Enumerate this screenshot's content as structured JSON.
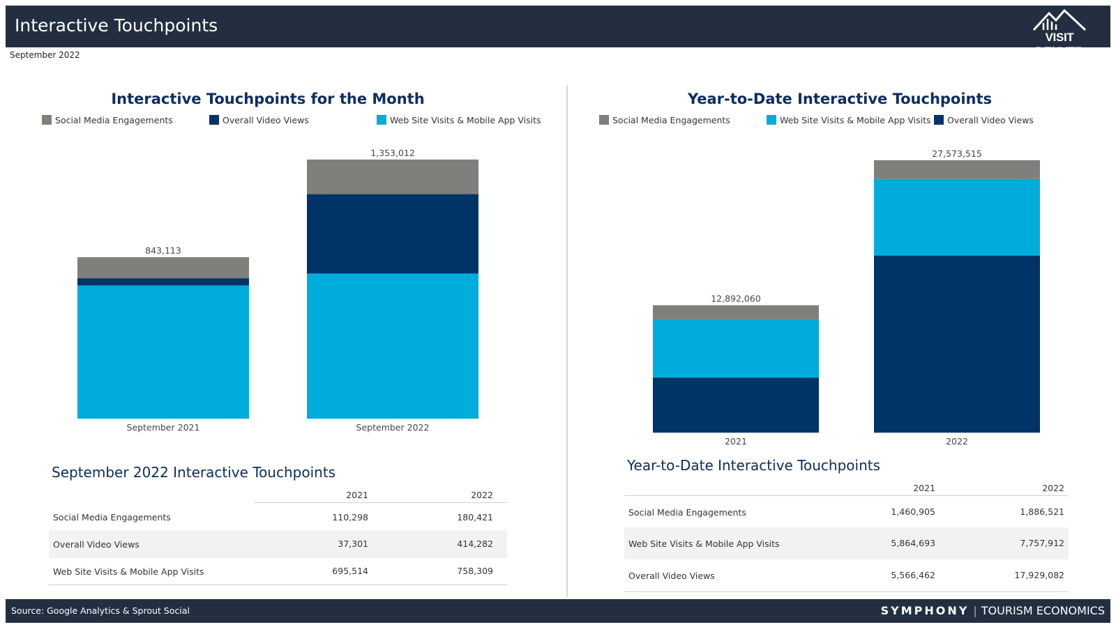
{
  "header": {
    "title": "Interactive Touchpoints",
    "logo_text": "VISIT DENVER"
  },
  "date_label": "September 2022",
  "colors": {
    "social": "#7f7f7b",
    "video": "#003366",
    "web": "#00acdc",
    "title": "#0b2e62"
  },
  "chart_data": [
    {
      "type": "bar",
      "stacked": true,
      "title": "Interactive Touchpoints for the Month",
      "categories": [
        "September 2021",
        "September 2022"
      ],
      "legend": [
        "Social Media Engagements",
        "Overall Video Views",
        "Web Site Visits & Mobile App Visits"
      ],
      "series": [
        {
          "name": "Web Site Visits & Mobile App Visits",
          "key": "web",
          "values": [
            695514,
            758309
          ]
        },
        {
          "name": "Overall Video Views",
          "key": "video",
          "values": [
            37301,
            414282
          ]
        },
        {
          "name": "Social Media Engagements",
          "key": "social",
          "values": [
            110298,
            180421
          ]
        }
      ],
      "totals": [
        "843,113",
        "1,353,012"
      ],
      "ylim": [
        0,
        1353012
      ],
      "grid": false
    },
    {
      "type": "bar",
      "stacked": true,
      "title": "Year-to-Date Interactive Touchpoints",
      "categories": [
        "2021",
        "2022"
      ],
      "legend": [
        "Social Media Engagements",
        "Web Site Visits & Mobile App Visits",
        "Overall Video Views"
      ],
      "series": [
        {
          "name": "Overall Video Views",
          "key": "video",
          "values": [
            5566462,
            17929082
          ]
        },
        {
          "name": "Web Site Visits & Mobile App Visits",
          "key": "web",
          "values": [
            5864693,
            7757912
          ]
        },
        {
          "name": "Social Media Engagements",
          "key": "social",
          "values": [
            1460905,
            1886521
          ]
        }
      ],
      "totals": [
        "12,892,060",
        "27,573,515"
      ],
      "ylim": [
        0,
        27573515
      ],
      "grid": false
    }
  ],
  "tables": {
    "month": {
      "title": "September 2022 Interactive Touchpoints",
      "columns": [
        "2021",
        "2022"
      ],
      "rows": [
        {
          "label": "Social Media Engagements",
          "v2021": "110,298",
          "v2022": "180,421"
        },
        {
          "label": "Overall Video Views",
          "v2021": "37,301",
          "v2022": "414,282"
        },
        {
          "label": "Web Site Visits & Mobile App Visits",
          "v2021": "695,514",
          "v2022": "758,309"
        }
      ]
    },
    "ytd": {
      "title": "Year-to-Date Interactive Touchpoints",
      "columns": [
        "2021",
        "2022"
      ],
      "rows": [
        {
          "label": "Social Media Engagements",
          "v2021": "1,460,905",
          "v2022": "1,886,521"
        },
        {
          "label": "Web Site Visits & Mobile App Visits",
          "v2021": "5,864,693",
          "v2022": "7,757,912"
        },
        {
          "label": "Overall Video Views",
          "v2021": "5,566,462",
          "v2022": "17,929,082"
        }
      ]
    }
  },
  "footer": {
    "source": "Source: Google Analytics & Sprout Social",
    "brand_primary": "SYMPHONY",
    "brand_secondary": "TOURISM ECONOMICS"
  }
}
